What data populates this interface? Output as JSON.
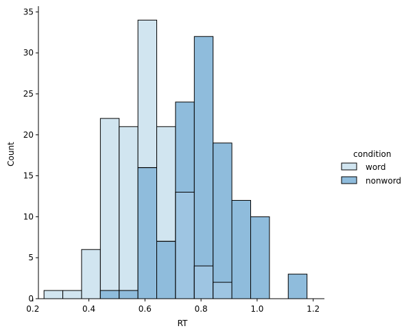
{
  "chart_data": {
    "type": "histogram",
    "title": "",
    "xlabel": "RT",
    "ylabel": "Count",
    "xlim": [
      0.22,
      1.24
    ],
    "ylim": [
      0,
      35.7
    ],
    "xticks": [
      0.2,
      0.4,
      0.6,
      0.8,
      1.0,
      1.2
    ],
    "xtick_labels": [
      "0.2",
      "0.4",
      "0.6",
      "0.8",
      "1.0",
      "1.2"
    ],
    "yticks": [
      0,
      5,
      10,
      15,
      20,
      25,
      30,
      35
    ],
    "ytick_labels": [
      "0",
      "5",
      "10",
      "15",
      "20",
      "25",
      "30",
      "35"
    ],
    "bin_edges": [
      0.24,
      0.307,
      0.374,
      0.441,
      0.508,
      0.575,
      0.642,
      0.709,
      0.776,
      0.843,
      0.91,
      0.977,
      1.044,
      1.111,
      1.178
    ],
    "legend_title": "condition",
    "legend_position": "right",
    "series": [
      {
        "name": "word",
        "color": "#d1e5f0",
        "values": [
          1,
          1,
          6,
          22,
          21,
          34,
          21,
          13,
          4,
          2,
          0,
          0,
          0,
          0
        ]
      },
      {
        "name": "nonword",
        "color": "#8fbcdc",
        "values": [
          0,
          0,
          0,
          1,
          1,
          16,
          7,
          24,
          32,
          19,
          12,
          10,
          0,
          3
        ]
      }
    ],
    "overlap_color": "#9ec5e2"
  }
}
